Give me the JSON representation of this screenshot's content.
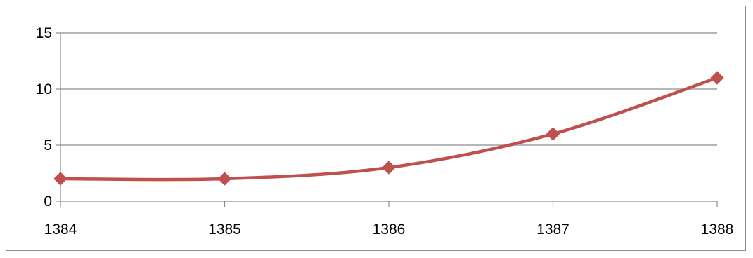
{
  "chart_data": {
    "type": "line",
    "x": [
      1384,
      1385,
      1386,
      1387,
      1388
    ],
    "series": [
      {
        "values": [
          2,
          2,
          3,
          6,
          11
        ],
        "color": "#c0504d"
      }
    ],
    "ylim": [
      0,
      15
    ],
    "yticks": [
      0,
      5,
      10,
      15
    ],
    "xticks": [
      "1384",
      "1385",
      "1386",
      "1387",
      "1388"
    ],
    "grid": "horizontal",
    "marker": "diamond",
    "smooth": true,
    "title": "",
    "xlabel": "",
    "ylabel": ""
  }
}
